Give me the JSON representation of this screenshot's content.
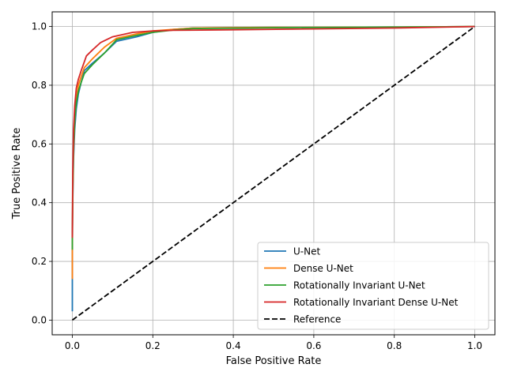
{
  "chart_data": {
    "type": "line",
    "xlabel": "False Positive Rate",
    "ylabel": "True Positive Rate",
    "xlim": [
      -0.05,
      1.05
    ],
    "ylim": [
      -0.05,
      1.05
    ],
    "xticks": [
      0.0,
      0.2,
      0.4,
      0.6,
      0.8,
      1.0
    ],
    "xtick_labels": [
      "0.0",
      "0.2",
      "0.4",
      "0.6",
      "0.8",
      "1.0"
    ],
    "yticks": [
      0.0,
      0.2,
      0.4,
      0.6,
      0.8,
      1.0
    ],
    "ytick_labels": [
      "0.0",
      "0.2",
      "0.4",
      "0.6",
      "0.8",
      "1.0"
    ],
    "grid": true,
    "legend_position": "bottom-right",
    "series": [
      {
        "name": "U-Net",
        "color": "#1f77b4",
        "x": [
          0.0,
          0.0,
          0.0,
          0.001,
          0.003,
          0.006,
          0.01,
          0.015,
          0.022,
          0.03,
          0.05,
          0.08,
          0.11,
          0.16,
          0.2,
          0.25,
          0.3,
          0.5,
          0.8,
          1.0
        ],
        "y": [
          0.03,
          0.14,
          0.25,
          0.4,
          0.55,
          0.65,
          0.72,
          0.77,
          0.81,
          0.85,
          0.875,
          0.91,
          0.95,
          0.965,
          0.98,
          0.99,
          0.995,
          0.997,
          0.998,
          1.0
        ]
      },
      {
        "name": "Dense U-Net",
        "color": "#ff7f0e",
        "x": [
          0.0,
          0.0,
          0.001,
          0.003,
          0.006,
          0.01,
          0.015,
          0.022,
          0.03,
          0.05,
          0.08,
          0.11,
          0.16,
          0.2,
          0.25,
          0.3,
          0.5,
          0.8,
          1.0
        ],
        "y": [
          0.14,
          0.24,
          0.42,
          0.58,
          0.68,
          0.75,
          0.8,
          0.83,
          0.86,
          0.89,
          0.93,
          0.96,
          0.975,
          0.985,
          0.99,
          0.995,
          0.997,
          0.998,
          1.0
        ]
      },
      {
        "name": "Rotationally Invariant U-Net",
        "color": "#2ca02c",
        "x": [
          0.0,
          0.0,
          0.001,
          0.003,
          0.006,
          0.01,
          0.015,
          0.022,
          0.03,
          0.05,
          0.08,
          0.11,
          0.16,
          0.2,
          0.25,
          0.3,
          0.5,
          0.8,
          1.0
        ],
        "y": [
          0.24,
          0.28,
          0.45,
          0.6,
          0.68,
          0.74,
          0.78,
          0.81,
          0.84,
          0.87,
          0.91,
          0.955,
          0.97,
          0.98,
          0.988,
          0.993,
          0.996,
          0.998,
          1.0
        ]
      },
      {
        "name": "Rotationally Invariant Dense U-Net",
        "color": "#d62728",
        "x": [
          0.0,
          0.0,
          0.001,
          0.003,
          0.006,
          0.01,
          0.015,
          0.022,
          0.035,
          0.05,
          0.07,
          0.1,
          0.15,
          0.2,
          0.25,
          0.4,
          0.6,
          0.8,
          1.0
        ],
        "y": [
          0.28,
          0.3,
          0.5,
          0.65,
          0.73,
          0.79,
          0.82,
          0.85,
          0.9,
          0.92,
          0.945,
          0.965,
          0.98,
          0.985,
          0.987,
          0.989,
          0.992,
          0.995,
          1.0
        ]
      },
      {
        "name": "Reference",
        "color": "#000000",
        "dashed": true,
        "x": [
          0.0,
          1.0
        ],
        "y": [
          0.0,
          1.0
        ]
      }
    ]
  }
}
